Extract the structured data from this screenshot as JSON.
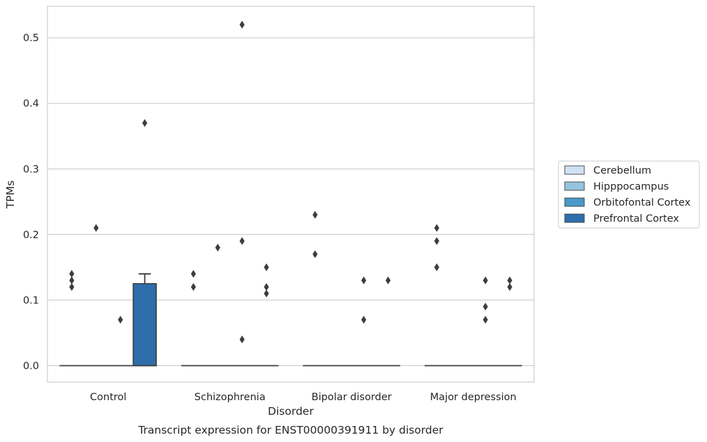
{
  "chart_data": {
    "type": "box",
    "caption": "Transcript expression for ENST00000391911 by disorder",
    "xlabel": "Disorder",
    "ylabel": "TPMs",
    "ylim": [
      -0.025,
      0.548
    ],
    "yticks": [
      "0.0",
      "0.1",
      "0.2",
      "0.3",
      "0.4",
      "0.5"
    ],
    "ytick_values": [
      0,
      0.1,
      0.2,
      0.3,
      0.4,
      0.5
    ],
    "grid": "horizontal",
    "legend_position": "right",
    "categories": [
      "Control",
      "Schizophrenia",
      "Bipolar disorder",
      "Major depression"
    ],
    "series": [
      {
        "name": "Cerebellum",
        "color": "#d0e1f2",
        "boxes": [
          {
            "q1": 0,
            "median": 0,
            "q3": 0,
            "whisker_low": 0,
            "whisker_high": 0,
            "outliers": [
              0.12,
              0.13,
              0.14
            ]
          },
          {
            "q1": 0,
            "median": 0,
            "q3": 0,
            "whisker_low": 0,
            "whisker_high": 0,
            "outliers": [
              0.12,
              0.14
            ]
          },
          {
            "q1": 0,
            "median": 0,
            "q3": 0,
            "whisker_low": 0,
            "whisker_high": 0,
            "outliers": [
              0.17,
              0.23
            ]
          },
          {
            "q1": 0,
            "median": 0,
            "q3": 0,
            "whisker_low": 0,
            "whisker_high": 0,
            "outliers": [
              0.15,
              0.19,
              0.21
            ]
          }
        ]
      },
      {
        "name": "Hipppocampus",
        "color": "#94c4df",
        "boxes": [
          {
            "q1": 0,
            "median": 0,
            "q3": 0,
            "whisker_low": 0,
            "whisker_high": 0,
            "outliers": [
              0.21
            ]
          },
          {
            "q1": 0,
            "median": 0,
            "q3": 0,
            "whisker_low": 0,
            "whisker_high": 0,
            "outliers": [
              0.18
            ]
          },
          {
            "q1": 0,
            "median": 0,
            "q3": 0,
            "whisker_low": 0,
            "whisker_high": 0,
            "outliers": []
          },
          {
            "q1": 0,
            "median": 0,
            "q3": 0,
            "whisker_low": 0,
            "whisker_high": 0,
            "outliers": []
          }
        ]
      },
      {
        "name": "Orbitofontal Cortex",
        "color": "#4a98c9",
        "boxes": [
          {
            "q1": 0,
            "median": 0,
            "q3": 0,
            "whisker_low": 0,
            "whisker_high": 0,
            "outliers": [
              0.07
            ]
          },
          {
            "q1": 0,
            "median": 0,
            "q3": 0,
            "whisker_low": 0,
            "whisker_high": 0,
            "outliers": [
              0.04,
              0.19,
              0.52
            ]
          },
          {
            "q1": 0,
            "median": 0,
            "q3": 0,
            "whisker_low": 0,
            "whisker_high": 0,
            "outliers": [
              0.07,
              0.13
            ]
          },
          {
            "q1": 0,
            "median": 0,
            "q3": 0,
            "whisker_low": 0,
            "whisker_high": 0,
            "outliers": [
              0.07,
              0.09,
              0.13
            ]
          }
        ]
      },
      {
        "name": "Prefrontal Cortex",
        "color": "#2e6eab",
        "boxes": [
          {
            "q1": 0,
            "median": 0,
            "q3": 0.125,
            "whisker_low": 0,
            "whisker_high": 0.14,
            "outliers": [
              0.37
            ]
          },
          {
            "q1": 0,
            "median": 0,
            "q3": 0,
            "whisker_low": 0,
            "whisker_high": 0,
            "outliers": [
              0.11,
              0.12,
              0.15
            ]
          },
          {
            "q1": 0,
            "median": 0,
            "q3": 0,
            "whisker_low": 0,
            "whisker_high": 0,
            "outliers": [
              0.13
            ]
          },
          {
            "q1": 0,
            "median": 0,
            "q3": 0,
            "whisker_low": 0,
            "whisker_high": 0,
            "outliers": [
              0.12,
              0.13
            ]
          }
        ]
      }
    ]
  }
}
